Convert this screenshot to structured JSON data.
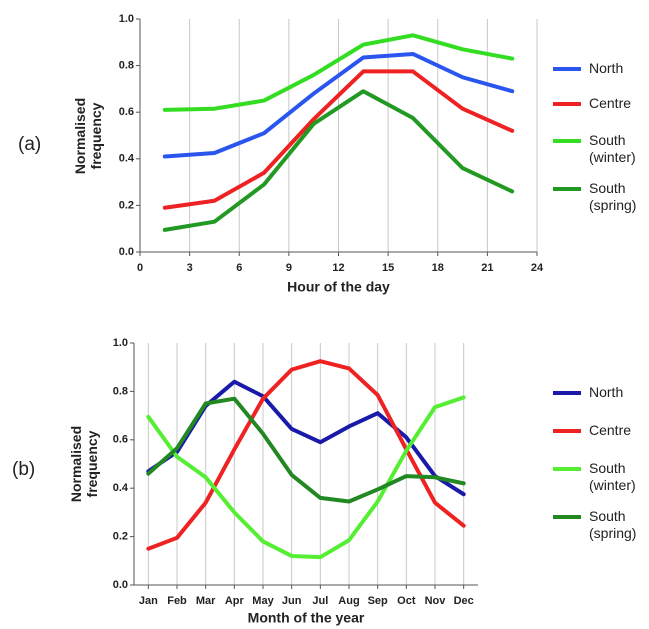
{
  "chart_data": [
    {
      "type": "line",
      "panel_label": "(a)",
      "xlabel": "Hour of the day",
      "ylabel": "Normalised frequency",
      "x": [
        1.5,
        4.5,
        7.5,
        10.5,
        13.5,
        16.5,
        19.5,
        22.5
      ],
      "xlim": [
        0,
        24
      ],
      "xticks": [
        0,
        3,
        6,
        9,
        12,
        15,
        18,
        21,
        24
      ],
      "ylim": [
        0,
        1
      ],
      "yticks": [
        {
          "value": 0,
          "label": "0.0"
        },
        0.2,
        0.4,
        0.6,
        0.8,
        {
          "value": 1,
          "label": "1.0"
        }
      ],
      "grid": "x",
      "legend": "right",
      "series": [
        {
          "name": "North",
          "color": "#2a55ee",
          "values": [
            0.41,
            0.425,
            0.51,
            0.68,
            0.835,
            0.85,
            0.75,
            0.69
          ]
        },
        {
          "name": "Centre",
          "color": "#ee2222",
          "values": [
            0.19,
            0.22,
            0.34,
            0.57,
            0.775,
            0.775,
            0.615,
            0.52
          ]
        },
        {
          "name": "South (winter)",
          "color": "#33dd22",
          "values": [
            0.61,
            0.615,
            0.65,
            0.76,
            0.89,
            0.93,
            0.87,
            0.83
          ]
        },
        {
          "name": "South (spring)",
          "color": "#229922",
          "values": [
            0.095,
            0.13,
            0.29,
            0.55,
            0.69,
            0.575,
            0.36,
            0.26
          ]
        }
      ]
    },
    {
      "type": "line",
      "panel_label": "(b)",
      "xlabel": "Month of the year",
      "ylabel": "Normalised frequency",
      "categories": [
        "Jan",
        "Feb",
        "Mar",
        "Apr",
        "May",
        "Jun",
        "Jul",
        "Aug",
        "Sep",
        "Oct",
        "Nov",
        "Dec"
      ],
      "ylim": [
        0,
        1
      ],
      "yticks": [
        {
          "value": 0,
          "label": "0.0"
        },
        0.2,
        0.4,
        0.6,
        0.8,
        {
          "value": 1,
          "label": "1.0"
        }
      ],
      "grid": "x",
      "legend": "right",
      "series": [
        {
          "name": "North",
          "color": "#1a1aaa",
          "values": [
            0.47,
            0.55,
            0.74,
            0.84,
            0.78,
            0.645,
            0.59,
            0.655,
            0.71,
            0.61,
            0.45,
            0.375
          ]
        },
        {
          "name": "Centre",
          "color": "#ee2222",
          "values": [
            0.15,
            0.195,
            0.34,
            0.56,
            0.77,
            0.89,
            0.925,
            0.895,
            0.785,
            0.56,
            0.34,
            0.245
          ]
        },
        {
          "name": "South (winter)",
          "color": "#55ee33",
          "values": [
            0.695,
            0.53,
            0.445,
            0.3,
            0.18,
            0.12,
            0.115,
            0.185,
            0.345,
            0.555,
            0.735,
            0.775
          ]
        },
        {
          "name": "South (spring)",
          "color": "#228822",
          "values": [
            0.46,
            0.565,
            0.75,
            0.77,
            0.625,
            0.455,
            0.36,
            0.345,
            0.395,
            0.45,
            0.445,
            0.42
          ]
        }
      ]
    }
  ]
}
